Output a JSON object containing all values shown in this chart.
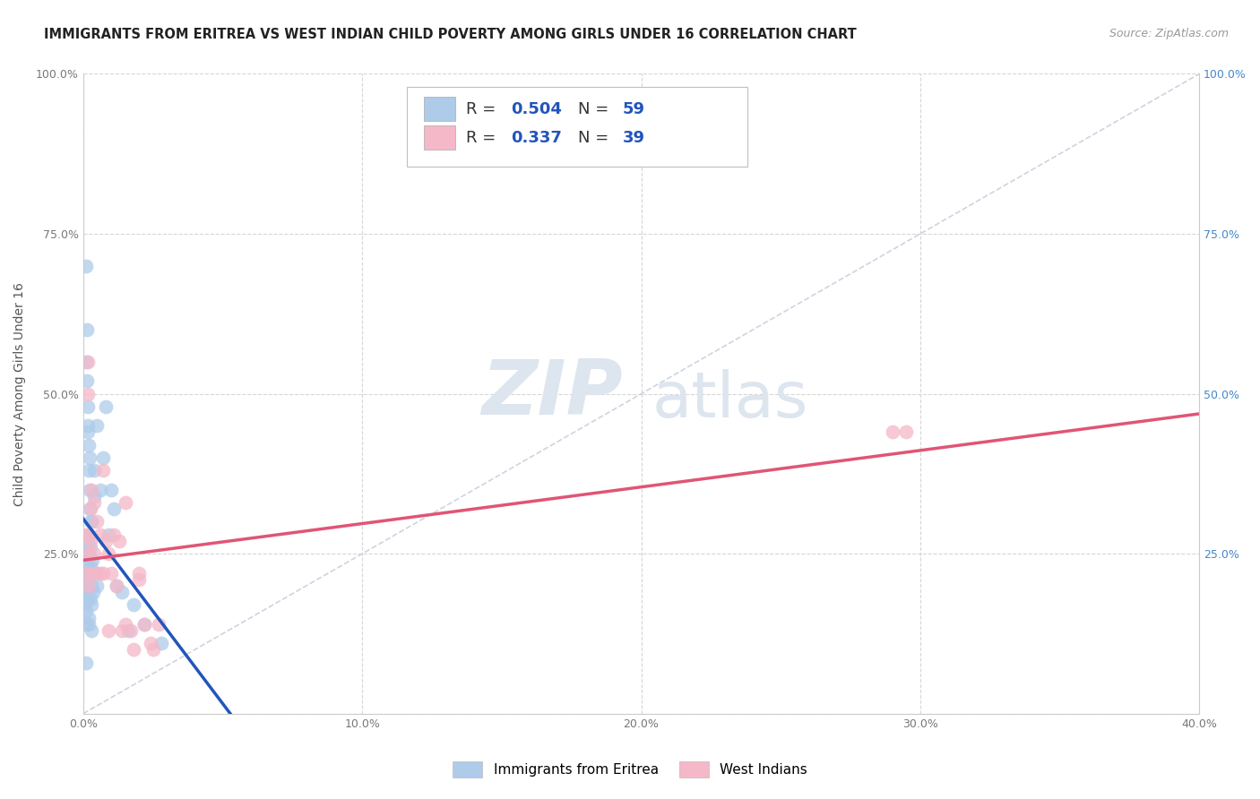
{
  "title": "IMMIGRANTS FROM ERITREA VS WEST INDIAN CHILD POVERTY AMONG GIRLS UNDER 16 CORRELATION CHART",
  "source": "Source: ZipAtlas.com",
  "ylabel": "Child Poverty Among Girls Under 16",
  "xlim": [
    0.0,
    0.4
  ],
  "ylim": [
    0.0,
    1.0
  ],
  "xtick_vals": [
    0.0,
    0.1,
    0.2,
    0.3,
    0.4
  ],
  "ytick_vals": [
    0.0,
    0.25,
    0.5,
    0.75,
    1.0
  ],
  "legend1_color": "#aecbea",
  "legend2_color": "#f4b8c8",
  "scatter1_color": "#aecbea",
  "scatter2_color": "#f4b8c8",
  "line1_color": "#2255bb",
  "line2_color": "#e05575",
  "diag_color": "#c8d0dc",
  "watermark_zip": "ZIP",
  "watermark_atlas": "atlas",
  "watermark_color": "#dde5ef",
  "blue_x": [
    0.0005,
    0.0007,
    0.0008,
    0.001,
    0.001,
    0.001,
    0.001,
    0.001,
    0.0012,
    0.0012,
    0.0013,
    0.0014,
    0.0015,
    0.0015,
    0.0015,
    0.0016,
    0.0017,
    0.0017,
    0.0018,
    0.0019,
    0.002,
    0.002,
    0.002,
    0.002,
    0.002,
    0.0022,
    0.0023,
    0.0024,
    0.0025,
    0.0025,
    0.0026,
    0.0027,
    0.0028,
    0.003,
    0.003,
    0.003,
    0.0032,
    0.0035,
    0.004,
    0.004,
    0.004,
    0.005,
    0.005,
    0.006,
    0.007,
    0.008,
    0.009,
    0.01,
    0.011,
    0.012,
    0.014,
    0.016,
    0.018,
    0.022,
    0.028,
    0.001,
    0.001,
    0.002,
    0.003
  ],
  "blue_y": [
    0.2,
    0.18,
    0.17,
    0.7,
    0.55,
    0.22,
    0.19,
    0.16,
    0.6,
    0.52,
    0.25,
    0.21,
    0.48,
    0.23,
    0.2,
    0.44,
    0.45,
    0.18,
    0.27,
    0.22,
    0.42,
    0.38,
    0.28,
    0.25,
    0.15,
    0.4,
    0.32,
    0.35,
    0.3,
    0.23,
    0.26,
    0.18,
    0.22,
    0.3,
    0.2,
    0.17,
    0.24,
    0.19,
    0.38,
    0.34,
    0.22,
    0.45,
    0.2,
    0.35,
    0.4,
    0.48,
    0.28,
    0.35,
    0.32,
    0.2,
    0.19,
    0.13,
    0.17,
    0.14,
    0.11,
    0.08,
    0.14,
    0.14,
    0.13
  ],
  "pink_x": [
    0.001,
    0.001,
    0.0015,
    0.0015,
    0.002,
    0.002,
    0.002,
    0.0025,
    0.0025,
    0.003,
    0.003,
    0.004,
    0.004,
    0.005,
    0.005,
    0.006,
    0.006,
    0.007,
    0.008,
    0.009,
    0.01,
    0.011,
    0.012,
    0.013,
    0.014,
    0.015,
    0.017,
    0.018,
    0.02,
    0.022,
    0.025,
    0.027,
    0.015,
    0.02,
    0.024,
    0.007,
    0.009,
    0.29,
    0.295
  ],
  "pink_y": [
    0.28,
    0.22,
    0.5,
    0.55,
    0.28,
    0.25,
    0.2,
    0.32,
    0.27,
    0.35,
    0.22,
    0.33,
    0.25,
    0.3,
    0.22,
    0.28,
    0.22,
    0.38,
    0.27,
    0.25,
    0.22,
    0.28,
    0.2,
    0.27,
    0.13,
    0.14,
    0.13,
    0.1,
    0.22,
    0.14,
    0.1,
    0.14,
    0.33,
    0.21,
    0.11,
    0.22,
    0.13,
    0.44,
    0.44
  ],
  "title_fontsize": 10.5,
  "axis_fontsize": 10,
  "tick_fontsize": 9,
  "legend_fontsize": 13,
  "right_tick_color": "#4488cc"
}
